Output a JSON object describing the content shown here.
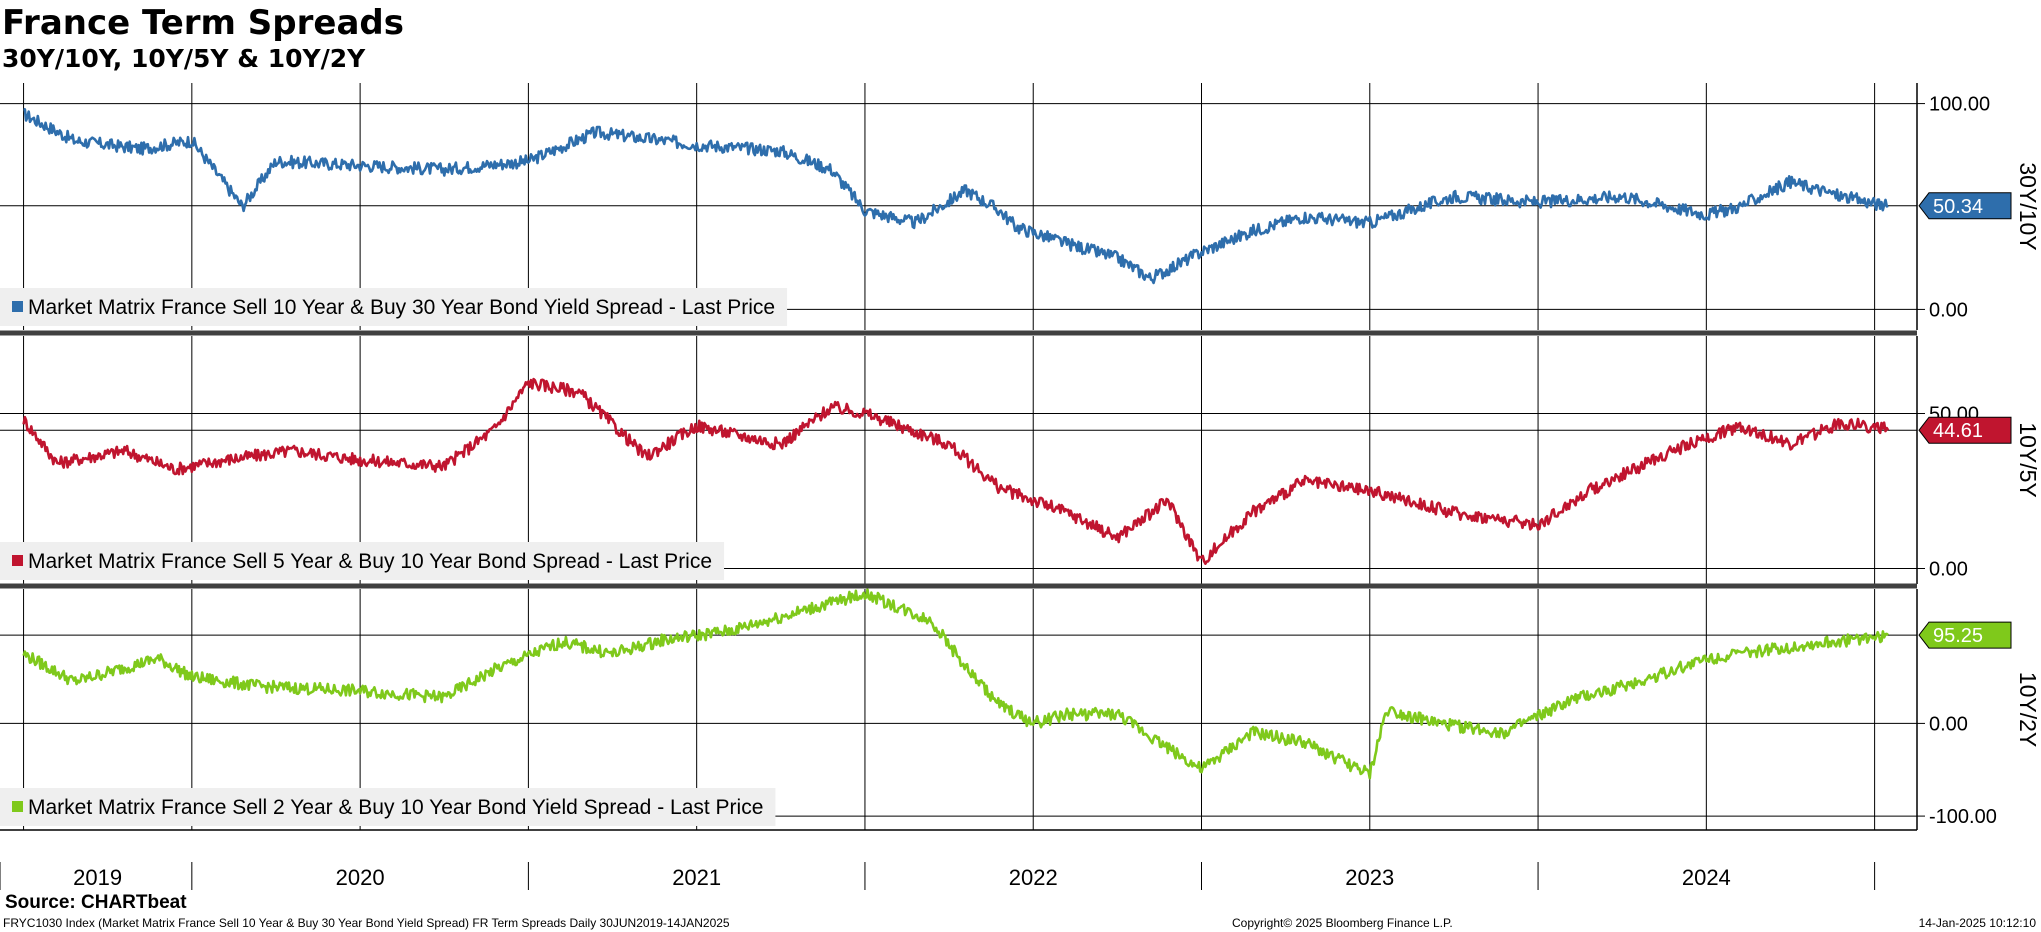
{
  "title": "France Term Spreads",
  "subtitle": "30Y/10Y, 10Y/5Y & 10Y/2Y",
  "source_label": "Source: CHARTbeat",
  "footer": {
    "left": "FRYC1030 Index (Market Matrix France Sell 10 Year & Buy 30 Year Bond Yield Spread) FR Term Spreads  Daily 30JUN2019-14JAN2025",
    "center": "Copyright© 2025 Bloomberg Finance L.P.",
    "right": "14-Jan-2025 10:12:10"
  },
  "colors": {
    "series_1": "#2e6eac",
    "series_2": "#c0152f",
    "series_3": "#7fc91b",
    "grid": "#000000",
    "legend_bg": "#efefef"
  },
  "chart_data": [
    {
      "type": "line",
      "axis_label": "30Y/10Y",
      "ylim": [
        -10,
        110
      ],
      "yticks": [
        0,
        100
      ],
      "ytick_labels": [
        "0.00",
        "100.00"
      ],
      "last_value": 50.34,
      "last_label": "50.34",
      "grid": true,
      "legend_position": "bottom-left",
      "series": [
        {
          "name": "Market Matrix France Sell 10 Year & Buy 30 Year Bond Yield Spread - Last Price",
          "x": [
            2019.5,
            2019.65,
            2019.85,
            2020.0,
            2020.15,
            2020.25,
            2020.5,
            2020.75,
            2021.0,
            2021.2,
            2021.5,
            2021.75,
            2021.9,
            2022.0,
            2022.15,
            2022.3,
            2022.4,
            2022.45,
            2022.6,
            2022.75,
            2022.85,
            2023.0,
            2023.15,
            2023.3,
            2023.5,
            2023.75,
            2024.0,
            2024.25,
            2024.5,
            2024.6,
            2024.75,
            2024.9,
            2025.04
          ],
          "values": [
            95,
            82,
            78,
            82,
            50,
            72,
            70,
            68,
            72,
            86,
            80,
            77,
            68,
            48,
            42,
            58,
            48,
            40,
            32,
            25,
            15,
            28,
            38,
            45,
            42,
            55,
            52,
            55,
            46,
            50,
            62,
            55,
            50
          ]
        }
      ]
    },
    {
      "type": "line",
      "axis_label": "10Y/5Y",
      "ylim": [
        -5,
        75
      ],
      "yticks": [
        0,
        50
      ],
      "ytick_labels": [
        "0.00",
        "50.00"
      ],
      "last_value": 44.61,
      "last_label": "44.61",
      "grid": true,
      "legend_position": "bottom-left",
      "series": [
        {
          "name": "Market Matrix France Sell 5 Year & Buy 10 Year Bond Spread - Last Price",
          "x": [
            2019.5,
            2019.6,
            2019.8,
            2019.95,
            2020.1,
            2020.3,
            2020.5,
            2020.75,
            2020.9,
            2021.0,
            2021.15,
            2021.35,
            2021.5,
            2021.75,
            2021.9,
            2022.0,
            2022.25,
            2022.4,
            2022.6,
            2022.75,
            2022.9,
            2023.0,
            2023.15,
            2023.3,
            2023.5,
            2023.75,
            2024.0,
            2024.15,
            2024.4,
            2024.6,
            2024.75,
            2024.9,
            2025.04
          ],
          "values": [
            48,
            34,
            38,
            32,
            35,
            38,
            35,
            33,
            45,
            60,
            57,
            36,
            46,
            40,
            52,
            50,
            40,
            26,
            18,
            10,
            22,
            2,
            18,
            28,
            25,
            18,
            14,
            25,
            38,
            46,
            40,
            47,
            45
          ]
        }
      ]
    },
    {
      "type": "line",
      "axis_label": "10Y/2Y",
      "ylim": [
        -115,
        145
      ],
      "yticks": [
        0,
        -100
      ],
      "ytick_labels": [
        "0.00",
        "-100.00"
      ],
      "last_value": 95.25,
      "last_label": "95.25",
      "grid": true,
      "legend_position": "bottom-left",
      "series": [
        {
          "name": "Market Matrix France Sell 2 Year & Buy 10 Year Bond Yield Spread - Last Price",
          "x": [
            2019.5,
            2019.65,
            2019.9,
            2020.0,
            2020.2,
            2020.5,
            2020.75,
            2020.9,
            2021.1,
            2021.25,
            2021.4,
            2021.6,
            2021.75,
            2021.9,
            2022.0,
            2022.2,
            2022.3,
            2022.4,
            2022.5,
            2022.6,
            2022.75,
            2023.0,
            2023.15,
            2023.3,
            2023.5,
            2023.55,
            2023.7,
            2023.9,
            2024.1,
            2024.3,
            2024.5,
            2024.7,
            2025.04
          ],
          "values": [
            75,
            45,
            70,
            50,
            40,
            35,
            28,
            58,
            88,
            75,
            90,
            100,
            115,
            130,
            140,
            110,
            60,
            20,
            0,
            10,
            10,
            -50,
            -10,
            -20,
            -55,
            15,
            0,
            -10,
            25,
            45,
            70,
            80,
            95
          ]
        }
      ]
    }
  ],
  "x_axis": {
    "ticks": [
      "2019",
      "2020",
      "2021",
      "2022",
      "2023",
      "2024"
    ]
  }
}
